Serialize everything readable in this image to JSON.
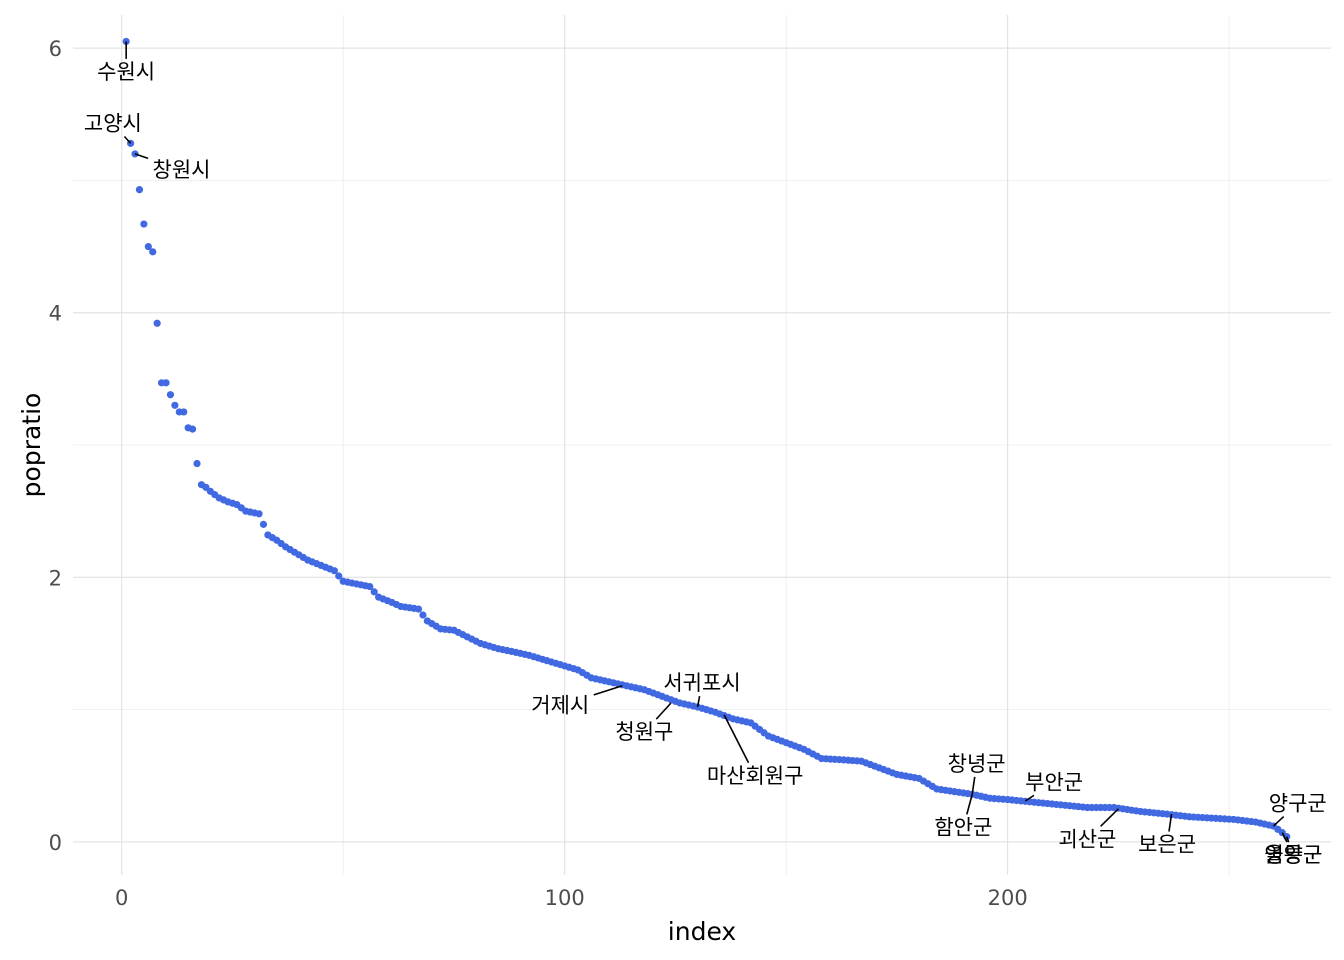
{
  "chart_data": {
    "type": "scatter",
    "title": "",
    "xlabel": "index",
    "ylabel": "popratio",
    "xlim": [
      -11,
      273
    ],
    "ylim": [
      -0.25,
      6.25
    ],
    "x_ticks": [
      0,
      100,
      200
    ],
    "y_ticks": [
      0,
      2,
      4,
      6
    ],
    "grid": true,
    "point_color": "#4169e1",
    "anchors": [
      [
        1,
        6.05
      ],
      [
        2,
        5.28
      ],
      [
        3,
        5.2
      ],
      [
        4,
        4.93
      ],
      [
        5,
        4.67
      ],
      [
        6,
        4.5
      ],
      [
        7,
        4.46
      ],
      [
        8,
        3.92
      ],
      [
        9,
        3.47
      ],
      [
        10,
        3.47
      ],
      [
        11,
        3.38
      ],
      [
        12,
        3.3
      ],
      [
        13,
        3.25
      ],
      [
        14,
        3.25
      ],
      [
        15,
        3.13
      ],
      [
        16,
        3.12
      ],
      [
        17,
        2.86
      ],
      [
        18,
        2.7
      ],
      [
        19,
        2.68
      ],
      [
        20,
        2.65
      ],
      [
        22,
        2.6
      ],
      [
        24,
        2.57
      ],
      [
        26,
        2.55
      ],
      [
        28,
        2.5
      ],
      [
        31,
        2.48
      ],
      [
        33,
        2.32
      ],
      [
        35,
        2.28
      ],
      [
        37,
        2.23
      ],
      [
        40,
        2.17
      ],
      [
        42,
        2.13
      ],
      [
        45,
        2.09
      ],
      [
        48,
        2.05
      ],
      [
        50,
        1.97
      ],
      [
        53,
        1.95
      ],
      [
        56,
        1.93
      ],
      [
        58,
        1.85
      ],
      [
        61,
        1.81
      ],
      [
        63,
        1.78
      ],
      [
        67,
        1.76
      ],
      [
        69,
        1.67
      ],
      [
        72,
        1.61
      ],
      [
        75,
        1.6
      ],
      [
        78,
        1.55
      ],
      [
        81,
        1.5
      ],
      [
        85,
        1.46
      ],
      [
        88,
        1.44
      ],
      [
        92,
        1.41
      ],
      [
        95,
        1.38
      ],
      [
        100,
        1.33
      ],
      [
        103,
        1.3
      ],
      [
        106,
        1.24
      ],
      [
        110,
        1.21
      ],
      [
        114,
        1.18
      ],
      [
        118,
        1.15
      ],
      [
        122,
        1.1
      ],
      [
        126,
        1.05
      ],
      [
        130,
        1.02
      ],
      [
        134,
        0.98
      ],
      [
        138,
        0.93
      ],
      [
        142,
        0.9
      ],
      [
        146,
        0.8
      ],
      [
        150,
        0.75
      ],
      [
        154,
        0.7
      ],
      [
        158,
        0.63
      ],
      [
        163,
        0.62
      ],
      [
        167,
        0.61
      ],
      [
        171,
        0.56
      ],
      [
        175,
        0.51
      ],
      [
        180,
        0.48
      ],
      [
        184,
        0.4
      ],
      [
        188,
        0.38
      ],
      [
        192,
        0.36
      ],
      [
        196,
        0.33
      ],
      [
        200,
        0.32
      ],
      [
        206,
        0.3
      ],
      [
        212,
        0.28
      ],
      [
        218,
        0.26
      ],
      [
        224,
        0.26
      ],
      [
        230,
        0.23
      ],
      [
        236,
        0.21
      ],
      [
        241,
        0.19
      ],
      [
        246,
        0.18
      ],
      [
        251,
        0.17
      ],
      [
        256,
        0.15
      ],
      [
        260,
        0.12
      ],
      [
        262,
        0.07
      ],
      [
        263,
        0.04
      ]
    ],
    "annotations": [
      {
        "label": "수원시",
        "x": 1,
        "y": 6.05,
        "lx": 1,
        "ly": 5.82
      },
      {
        "label": "고양시",
        "x": 2,
        "y": 5.28,
        "lx": -2,
        "ly": 5.43
      },
      {
        "label": "창원시",
        "x": 3,
        "y": 5.2,
        "lx": 13.5,
        "ly": 5.08
      },
      {
        "label": "거제시",
        "x": 113,
        "y": 1.18,
        "lx": 99,
        "ly": 1.03
      },
      {
        "label": "서귀포시",
        "x": 130,
        "y": 1.02,
        "lx": 131,
        "ly": 1.2
      },
      {
        "label": "청원구",
        "x": 124,
        "y": 1.05,
        "lx": 118,
        "ly": 0.83
      },
      {
        "label": "마산회원구",
        "x": 136,
        "y": 0.96,
        "lx": 143,
        "ly": 0.5
      },
      {
        "label": "창녕군",
        "x": 192,
        "y": 0.36,
        "lx": 193,
        "ly": 0.59
      },
      {
        "label": "부안군",
        "x": 204,
        "y": 0.31,
        "lx": 210.5,
        "ly": 0.45
      },
      {
        "label": "함안군",
        "x": 192,
        "y": 0.36,
        "lx": 190,
        "ly": 0.11
      },
      {
        "label": "괴산군",
        "x": 225,
        "y": 0.25,
        "lx": 218,
        "ly": 0.02
      },
      {
        "label": "보은군",
        "x": 237,
        "y": 0.21,
        "lx": 236,
        "ly": -0.02
      },
      {
        "label": "양구군",
        "x": 260,
        "y": 0.12,
        "lx": 265.5,
        "ly": 0.29
      },
      {
        "label": "울릉군",
        "x": 263,
        "y": 0.04,
        "lx": 264.5,
        "ly": -0.1
      },
      {
        "label": "영양군",
        "x": 262,
        "y": 0.07,
        "lx": 264.5,
        "ly": -0.1
      }
    ]
  }
}
